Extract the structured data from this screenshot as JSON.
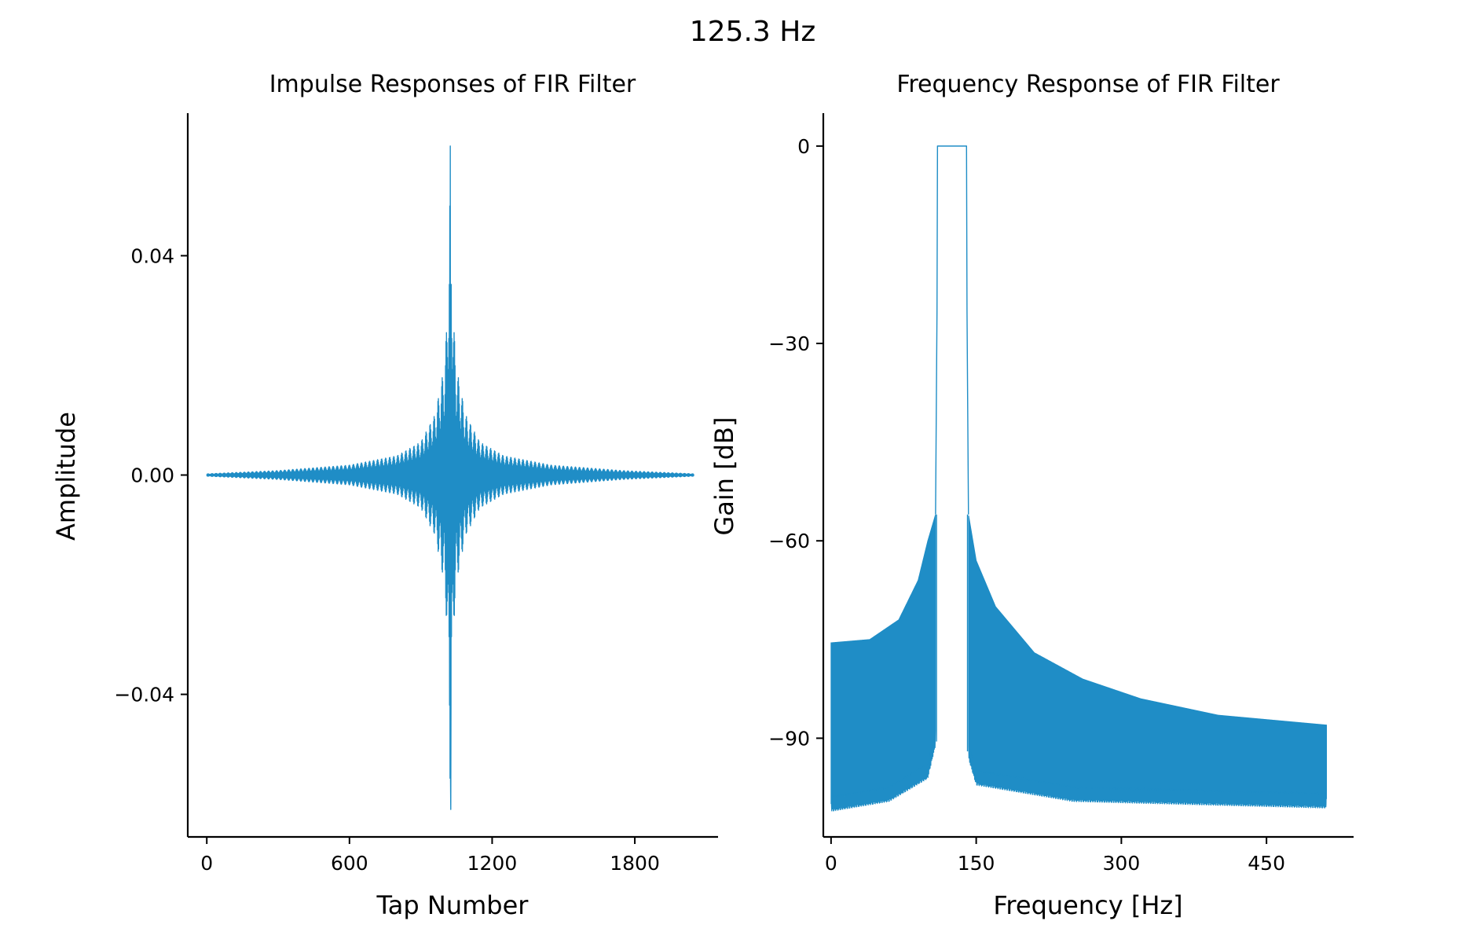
{
  "suptitle": "125.3 Hz",
  "chart_data": [
    {
      "type": "line",
      "title": "Impulse Responses of FIR Filter",
      "xlabel": "Tap Number",
      "ylabel": "Amplitude",
      "xlim": [
        -80,
        2150
      ],
      "ylim": [
        -0.066,
        0.066
      ],
      "xticks": [
        0,
        600,
        1200,
        1800
      ],
      "xtick_labels": [
        "0",
        "600",
        "1200",
        "1800"
      ],
      "yticks": [
        -0.04,
        0,
        0.04
      ],
      "ytick_labels": [
        "−0.04",
        "0.00",
        "0.04"
      ],
      "series": [
        {
          "color": "#1f8dc6",
          "n_taps": 2049,
          "center_tap": 1024,
          "peak_amplitude": 0.06,
          "min_amplitude": -0.061,
          "envelope_points": [
            [
              0,
              0.0002
            ],
            [
              300,
              0.0008
            ],
            [
              600,
              0.0018
            ],
            [
              800,
              0.0035
            ],
            [
              900,
              0.006
            ],
            [
              960,
              0.011
            ],
            [
              1000,
              0.02
            ],
            [
              1010,
              0.028
            ],
            [
              1020,
              0.045
            ],
            [
              1024,
              0.06
            ],
            [
              1028,
              0.045
            ],
            [
              1038,
              0.028
            ],
            [
              1048,
              0.02
            ],
            [
              1088,
              0.011
            ],
            [
              1148,
              0.006
            ],
            [
              1248,
              0.0035
            ],
            [
              1448,
              0.0018
            ],
            [
              1748,
              0.0008
            ],
            [
              2048,
              0.0002
            ]
          ]
        }
      ]
    },
    {
      "type": "area",
      "title": "Frequency Response of FIR Filter",
      "xlabel": "Frequency [Hz]",
      "ylabel": "Gain [dB]",
      "xlim": [
        -8,
        540
      ],
      "ylim": [
        -105,
        5
      ],
      "xticks": [
        0,
        150,
        300,
        450
      ],
      "xtick_labels": [
        "0",
        "150",
        "300",
        "450"
      ],
      "yticks": [
        0,
        -30,
        -60,
        -90
      ],
      "ytick_labels": [
        "0",
        "−30",
        "−60",
        "−90"
      ],
      "series": [
        {
          "color": "#1f8dc6",
          "passband_hz": [
            110,
            140
          ],
          "passband_gain_db": 0,
          "upper_envelope_db": [
            [
              0,
              -75.5
            ],
            [
              40,
              -75
            ],
            [
              70,
              -72
            ],
            [
              90,
              -66
            ],
            [
              100,
              -60
            ],
            [
              108,
              -56
            ],
            [
              142,
              -56
            ],
            [
              150,
              -63
            ],
            [
              170,
              -70
            ],
            [
              210,
              -77
            ],
            [
              260,
              -81
            ],
            [
              320,
              -84
            ],
            [
              400,
              -86.5
            ],
            [
              512,
              -88
            ]
          ],
          "lower_floor_db": [
            [
              0,
              -100
            ],
            [
              60,
              -98.5
            ],
            [
              100,
              -95
            ],
            [
              108,
              -90
            ],
            [
              142,
              -92
            ],
            [
              150,
              -96
            ],
            [
              250,
              -98.5
            ],
            [
              512,
              -99.5
            ]
          ],
          "x_max_hz": 512
        }
      ]
    }
  ]
}
